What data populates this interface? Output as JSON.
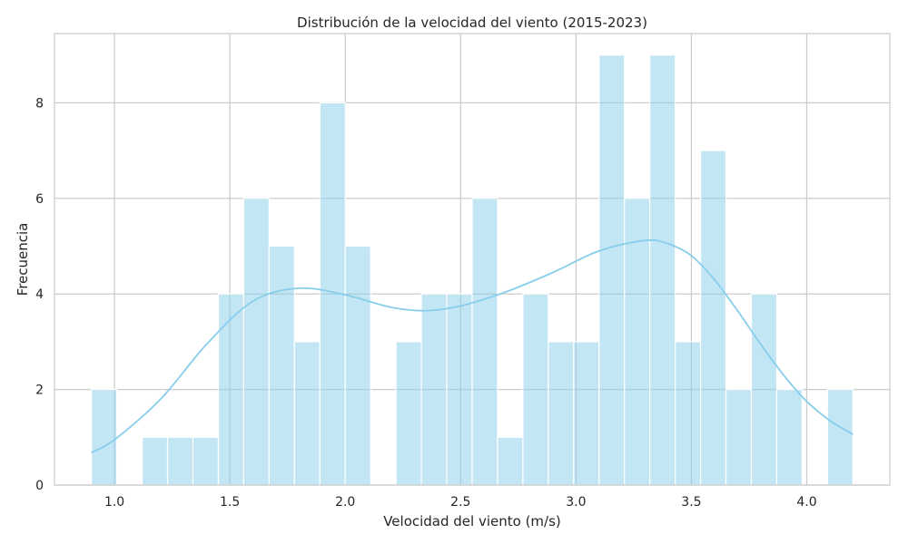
{
  "chart_data": {
    "type": "bar",
    "subtype": "histogram-with-kde",
    "title": "Distribución de la velocidad del viento (2015-2023)",
    "xlabel": "Velocidad del viento (m/s)",
    "ylabel": "Frecuencia",
    "xlim": [
      0.74,
      4.36
    ],
    "ylim": [
      0,
      9.45
    ],
    "xticks": [
      1.0,
      1.5,
      2.0,
      2.5,
      3.0,
      3.5,
      4.0
    ],
    "xtick_labels": [
      "1.0",
      "1.5",
      "2.0",
      "2.5",
      "3.0",
      "3.5",
      "4.0"
    ],
    "yticks": [
      0,
      2,
      4,
      6,
      8
    ],
    "ytick_labels": [
      "0",
      "2",
      "4",
      "6",
      "8"
    ],
    "grid": true,
    "bar_color": "#87ceeb",
    "bar_opacity": 0.5,
    "kde_color": "#87ceeb",
    "bin_edges": [
      0.9,
      1.01,
      1.12,
      1.23,
      1.34,
      1.45,
      1.56,
      1.67,
      1.78,
      1.89,
      2.0,
      2.11,
      2.22,
      2.33,
      2.44,
      2.55,
      2.66,
      2.77,
      2.88,
      2.99,
      3.1,
      3.21,
      3.32,
      3.43,
      3.54,
      3.65,
      3.76,
      3.87,
      3.98,
      4.09,
      4.2
    ],
    "counts": [
      2,
      0,
      1,
      1,
      1,
      4,
      6,
      5,
      3,
      8,
      5,
      0,
      3,
      4,
      4,
      6,
      1,
      4,
      3,
      3,
      9,
      6,
      9,
      3,
      7,
      2,
      4,
      2,
      0,
      2
    ],
    "kde": {
      "x": [
        0.9,
        1.0,
        1.2,
        1.4,
        1.6,
        1.8,
        2.0,
        2.2,
        2.35,
        2.5,
        2.7,
        2.9,
        3.1,
        3.3,
        3.4,
        3.5,
        3.6,
        3.7,
        3.8,
        3.9,
        4.0,
        4.1,
        4.2
      ],
      "y": [
        0.68,
        0.95,
        1.8,
        2.95,
        3.85,
        4.12,
        3.98,
        3.72,
        3.65,
        3.75,
        4.05,
        4.45,
        4.9,
        5.12,
        5.05,
        4.8,
        4.3,
        3.65,
        2.95,
        2.3,
        1.75,
        1.35,
        1.06
      ]
    }
  }
}
